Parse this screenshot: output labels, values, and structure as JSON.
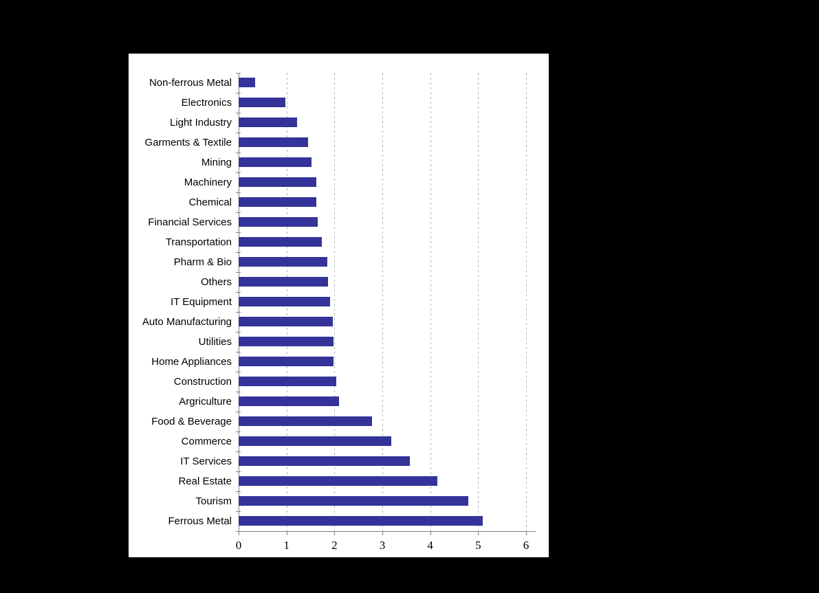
{
  "canvas": {
    "background_color": "#000000",
    "chart_background_color": "#ffffff"
  },
  "chart_data": {
    "type": "bar",
    "orientation": "horizontal",
    "title": "",
    "xlabel": "",
    "ylabel": "",
    "categories": [
      "Non-ferrous Metal",
      "Electronics",
      "Light Industry",
      "Garments & Textile",
      "Mining",
      "Machinery",
      "Chemical",
      "Financial Services",
      "Transportation",
      "Pharm & Bio",
      "Others",
      "IT Equipment",
      "Auto Manufacturing",
      "Utilities",
      "Home Appliances",
      "Construction",
      "Argriculture",
      "Food & Beverage",
      "Commerce",
      "IT Services",
      "Real Estate",
      "Tourism",
      "Ferrous Metal"
    ],
    "values": [
      0.35,
      0.97,
      1.22,
      1.45,
      1.52,
      1.62,
      1.62,
      1.65,
      1.74,
      1.85,
      1.87,
      1.91,
      1.96,
      1.98,
      1.98,
      2.04,
      2.1,
      2.78,
      3.18,
      3.58,
      4.15,
      4.79,
      5.1
    ],
    "xlim": [
      0,
      6
    ],
    "x_ticks": [
      0,
      1,
      2,
      3,
      4,
      5,
      6
    ],
    "grid": "vertical-dashed",
    "legend": "none",
    "bar_color": "#333399",
    "gridline_color": "#b3b3b3",
    "axis_color": "#808080",
    "text_color": "#000000"
  }
}
